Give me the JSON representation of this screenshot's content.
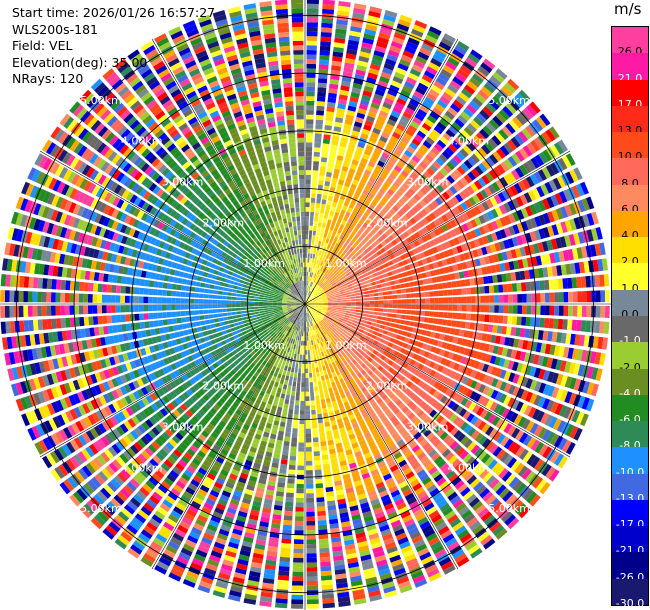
{
  "header": {
    "start_time": "Start time: 2026/01/26 16:57:27",
    "instrument": "WLS200s-181",
    "field": "Field: VEL",
    "elevation": "Elevation(deg): 35.00",
    "nrays": "NRays: 120"
  },
  "colorbar": {
    "unit": "m/s",
    "levels": [
      {
        "label": "26.0",
        "color": "#ff3fa0"
      },
      {
        "label": "21.0",
        "color": "#ff1aa6"
      },
      {
        "label": "17.0",
        "color": "#ff0000"
      },
      {
        "label": "13.0",
        "color": "#ff2a1a"
      },
      {
        "label": "10.0",
        "color": "#ff4a1a"
      },
      {
        "label": "8.0",
        "color": "#ff6a5a"
      },
      {
        "label": "6.0",
        "color": "#ff8a60"
      },
      {
        "label": "4.0",
        "color": "#ffa500"
      },
      {
        "label": "2.0",
        "color": "#ffdf00"
      },
      {
        "label": "1.0",
        "color": "#ffff2a"
      },
      {
        "label": "0.0",
        "color": "#778899"
      },
      {
        "label": "-1.0",
        "color": "#696969"
      },
      {
        "label": "-2.0",
        "color": "#9acd32"
      },
      {
        "label": "-4.0",
        "color": "#6b8e23"
      },
      {
        "label": "-6.0",
        "color": "#228b22"
      },
      {
        "label": "-8.0",
        "color": "#2e8b57"
      },
      {
        "label": "-10.0",
        "color": "#1e90ff"
      },
      {
        "label": "-13.0",
        "color": "#4169e1"
      },
      {
        "label": "-17.0",
        "color": "#0000ff"
      },
      {
        "label": "-21.0",
        "color": "#0000cd"
      },
      {
        "label": "-26.0",
        "color": "#00008b"
      },
      {
        "label": "-30.0",
        "color": "#191970"
      }
    ]
  },
  "chart_data": {
    "type": "ppi",
    "field": "VEL",
    "elevation_deg": 35.0,
    "n_rays": 120,
    "max_range_km": 5.3,
    "range_rings_km": [
      1.0,
      2.0,
      3.0,
      4.0,
      5.0
    ],
    "ring_labels": [
      "1.00km",
      "2.00km",
      "3.00km",
      "4.00km",
      "5.00km"
    ],
    "spoke_angles_deg": [
      0,
      30,
      60,
      90,
      120,
      150,
      180,
      210,
      240,
      270,
      300,
      330
    ],
    "velocity_pattern": {
      "positive_sector_azimuth_deg": [
        0,
        180
      ],
      "negative_sector_azimuth_deg": [
        180,
        360
      ],
      "max_abs_velocity_near_center_ms": 10,
      "noise_beyond_range_km": 3.5
    }
  }
}
